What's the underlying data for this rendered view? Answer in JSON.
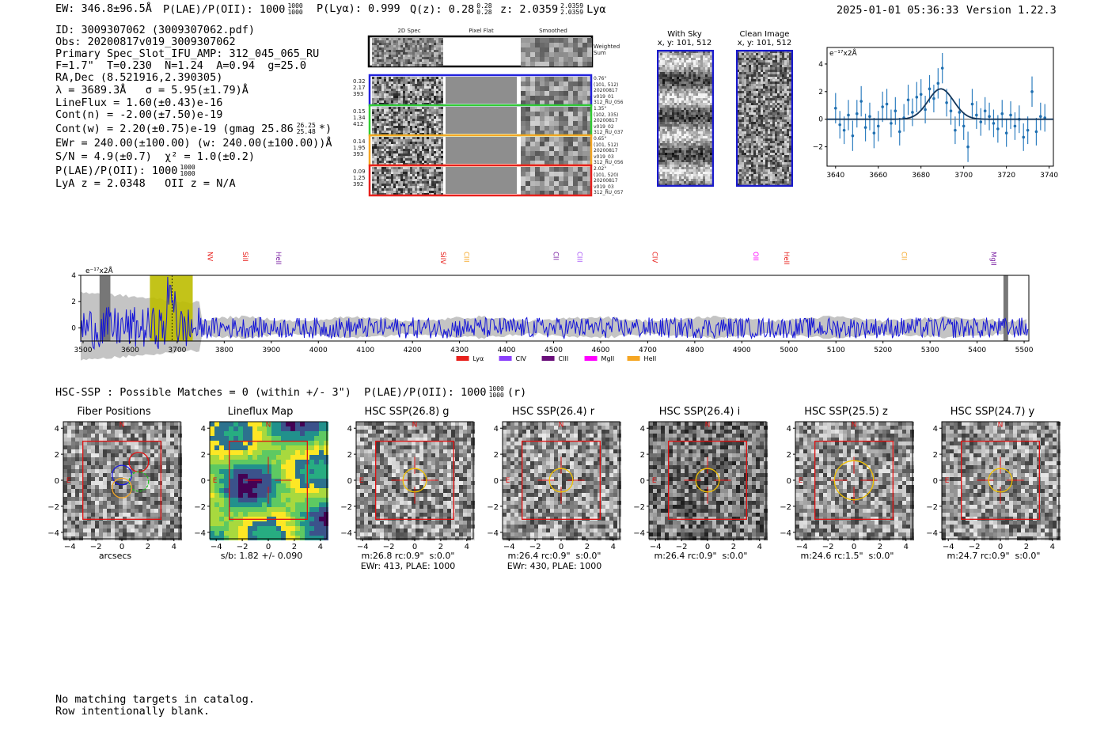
{
  "header": {
    "ew": "EW: 346.8±96.5Å",
    "plae": "P(LAE)/P(OII): 1000",
    "plae_hi": "1000",
    "plae_lo": "1000",
    "plya": "P(Lyα): 0.999",
    "qz": "Q(z): 0.28",
    "qz_hi": "0.28",
    "qz_lo": "0.28",
    "z": "z: 2.0359",
    "z_hi": "2.0359",
    "z_lo": "2.0359",
    "z_line": "Lyα",
    "datetime": "2025-01-01 05:36:33",
    "version": "Version 1.22.3"
  },
  "info": {
    "id": "ID: 3009307062 (3009307062.pdf)",
    "obs": "Obs: 20200817v019_3009307062",
    "primary": "Primary Spec_Slot_IFU_AMP: 312_045_065_RU",
    "fit": "F=1.7\"  T=0.230  N=1.24  A=0.94  g=25.0",
    "radec": "RA,Dec (8.521916,2.390305)",
    "lambda": "λ = 3689.3Å   σ = 5.95(±1.79)Å",
    "lineflux": "LineFlux = 1.60(±0.43)e-16",
    "contn": "Cont(n) = -2.00(±7.50)e-19",
    "contw": "Cont(w) = 2.20(±0.75)e-19 (gmag 25.86",
    "gmag_hi": "26.25",
    "gmag_lo": "25.48",
    "contw_end": "*)",
    "ewr": "EWr = 240.00(±100.00) (w: 240.00(±100.00))Å",
    "sn": "S/N = 4.9(±0.7)  χ² = 1.0(±0.2)",
    "plae": "P(LAE)/P(OII): 1000",
    "plae_hi": "1000",
    "plae_lo": "1000",
    "lya_z": "LyA z = 2.0348   OII z = N/A"
  },
  "cutouts": {
    "col_titles": [
      "2D Spec",
      "Pixel Flat",
      "Smoothed"
    ],
    "weighted_label": "Weighted\nSum",
    "rows": [
      {
        "color": "#2222dd",
        "left": [
          "0.32",
          "2.17",
          "393"
        ],
        "right": [
          "0.76\"",
          "(101, 512)",
          "20200817",
          "v019_01",
          "312_RU_056"
        ]
      },
      {
        "color": "#33cc33",
        "left": [
          "0.15",
          "1.34",
          "412"
        ],
        "right": [
          "1.35\"",
          "(102, 335)",
          "20200817",
          "v019_02",
          "312_RU_037"
        ]
      },
      {
        "color": "#f5a623",
        "left": [
          "0.14",
          "1.95",
          "393"
        ],
        "right": [
          "0.65\"",
          "(101, 512)",
          "20200817",
          "v019_03",
          "312_RU_056"
        ]
      },
      {
        "color": "#e8201c",
        "left": [
          "0.09",
          "1.25",
          "392"
        ],
        "right": [
          "2.02\"",
          "(101, 520)",
          "20200817",
          "v019_03",
          "312_RU_057"
        ]
      }
    ],
    "with_sky_title": "With Sky",
    "with_sky_xy": "x, y: 101, 512",
    "clean_title": "Clean Image",
    "clean_xy": "x, y: 101, 512"
  },
  "zoom_chart": {
    "type": "scatter",
    "ylabel": "e⁻¹⁷x2Å",
    "x_ticks": [
      "3640",
      "3660",
      "3680",
      "3700",
      "3720",
      "3740"
    ],
    "y_ticks": [
      "4",
      "2",
      "0",
      "−2"
    ],
    "xlim": [
      3636,
      3742
    ],
    "ylim": [
      -3.4,
      5.2
    ],
    "x": [
      3640,
      3642,
      3644,
      3646,
      3648,
      3650,
      3652,
      3654,
      3656,
      3658,
      3660,
      3662,
      3664,
      3666,
      3668,
      3670,
      3672,
      3674,
      3676,
      3678,
      3680,
      3682,
      3684,
      3686,
      3688,
      3690,
      3692,
      3694,
      3696,
      3698,
      3700,
      3702,
      3704,
      3706,
      3708,
      3710,
      3712,
      3714,
      3716,
      3718,
      3720,
      3722,
      3724,
      3726,
      3728,
      3730,
      3732,
      3734,
      3736,
      3738
    ],
    "y": [
      0.8,
      -0.4,
      -0.8,
      0.3,
      -1.2,
      0.4,
      1.3,
      -0.6,
      0.2,
      -1.0,
      -0.5,
      0.9,
      1.1,
      -0.3,
      0.6,
      -0.9,
      0.1,
      1.4,
      0.5,
      1.6,
      1.8,
      0.7,
      2.2,
      1.5,
      2.6,
      3.7,
      1.2,
      0.6,
      -0.8,
      0.5,
      -0.5,
      -2.0,
      1.1,
      0.3,
      -0.2,
      0.6,
      0.2,
      -0.3,
      -0.7,
      0.4,
      -1.0,
      0.3,
      -0.5,
      0.0,
      -1.3,
      -0.8,
      2.0,
      -0.9,
      0.2,
      0.1
    ],
    "err": [
      1.1,
      1.0,
      1.0,
      1.1,
      1.1,
      1.0,
      1.1,
      1.0,
      1.0,
      1.1,
      1.1,
      1.1,
      1.1,
      1.0,
      1.0,
      1.0,
      1.0,
      1.1,
      1.0,
      1.1,
      1.1,
      1.0,
      1.0,
      1.0,
      1.1,
      1.1,
      1.0,
      1.0,
      1.0,
      1.0,
      1.0,
      1.1,
      1.1,
      1.0,
      1.0,
      1.0,
      1.0,
      1.0,
      1.0,
      1.0,
      1.0,
      1.0,
      1.0,
      1.0,
      1.0,
      1.0,
      1.1,
      1.0,
      1.0,
      1.0
    ],
    "fit": {
      "center": 3689.3,
      "sigma": 5.95,
      "amp": 2.2
    }
  },
  "spectrum": {
    "type": "line",
    "ylabel": "e⁻¹⁷x2Å",
    "x_ticks": [
      "3500",
      "3600",
      "3700",
      "3800",
      "3900",
      "4000",
      "4100",
      "4200",
      "4300",
      "4400",
      "4500",
      "4600",
      "4700",
      "4800",
      "4900",
      "5000",
      "5100",
      "5200",
      "5300",
      "5400",
      "5500"
    ],
    "y_ticks": [
      "4",
      "2",
      "0"
    ],
    "xlim": [
      3495,
      5510
    ],
    "ylim": [
      -1.0,
      4.0
    ],
    "highlight_band": [
      3642,
      3733
    ],
    "line_markers": [
      {
        "name": "NV",
        "wave": 3760,
        "color": "#e8201c"
      },
      {
        "name": "SiII",
        "wave": 3835,
        "color": "#e8201c"
      },
      {
        "name": "HeII",
        "wave": 3905,
        "color": "#7a1fa2"
      },
      {
        "name": "SiIV",
        "wave": 4255,
        "color": "#e8201c"
      },
      {
        "name": "CIII",
        "wave": 4305,
        "color": "#f5a623"
      },
      {
        "name": "CII",
        "wave": 4495,
        "color": "#7a1fa2"
      },
      {
        "name": "CIII",
        "wave": 4545,
        "color": "#a855f7"
      },
      {
        "name": "CIV",
        "wave": 4705,
        "color": "#e8201c"
      },
      {
        "name": "OII",
        "wave": 4920,
        "color": "#ff00ff"
      },
      {
        "name": "HeII",
        "wave": 4985,
        "color": "#e8201c"
      },
      {
        "name": "CII",
        "wave": 5235,
        "color": "#f5a623"
      },
      {
        "name": "MgII",
        "wave": 5425,
        "color": "#7a1fa2"
      }
    ],
    "legend": [
      {
        "name": "Lyα",
        "color": "#e8201c"
      },
      {
        "name": "CIV",
        "color": "#8a3ffc"
      },
      {
        "name": "CIII",
        "color": "#6a0f7a"
      },
      {
        "name": "MgII",
        "color": "#ff00ff"
      },
      {
        "name": "HeII",
        "color": "#f5a623"
      }
    ]
  },
  "hsc": {
    "summary": "HSC-SSP : Possible Matches = 0 (within +/- 3\")  P(LAE)/P(OII): 1000",
    "summary_hi": "1000",
    "summary_lo": "1000",
    "summary_end": "(r)",
    "axis_ticks": [
      "−4",
      "−2",
      "0",
      "2",
      "4"
    ],
    "y_ticks": [
      "4",
      "2",
      "0",
      "−2",
      "−4"
    ],
    "panels": [
      {
        "title": "Fiber Positions",
        "caption": "arcsecs",
        "caption2": ""
      },
      {
        "title": "Lineflux Map",
        "caption": "s/b: 1.82 +/- 0.090",
        "caption2": ""
      },
      {
        "title": "HSC SSP(26.8) g",
        "caption": "m:26.8 rc:0.9\"  s:0.0\"",
        "caption2": "EWr: 413, PLAE: 1000"
      },
      {
        "title": "HSC SSP(26.4) r",
        "caption": "m:26.4 rc:0.9\"  s:0.0\"",
        "caption2": "EWr: 430, PLAE: 1000"
      },
      {
        "title": "HSC SSP(26.4) i",
        "caption": "m:26.4 rc:0.9\"  s:0.0\"",
        "caption2": ""
      },
      {
        "title": "HSC SSP(25.5) z",
        "caption": "m:24.6 rc:1.5\"  s:0.0\"",
        "caption2": ""
      },
      {
        "title": "HSC SSP(24.7) y",
        "caption": "m:24.7 rc:0.9\"  s:0.0\"",
        "caption2": ""
      }
    ],
    "north": "N",
    "east": "E"
  },
  "footer": {
    "line1": "No matching targets in catalog.",
    "line2": "Row intentionally blank."
  }
}
